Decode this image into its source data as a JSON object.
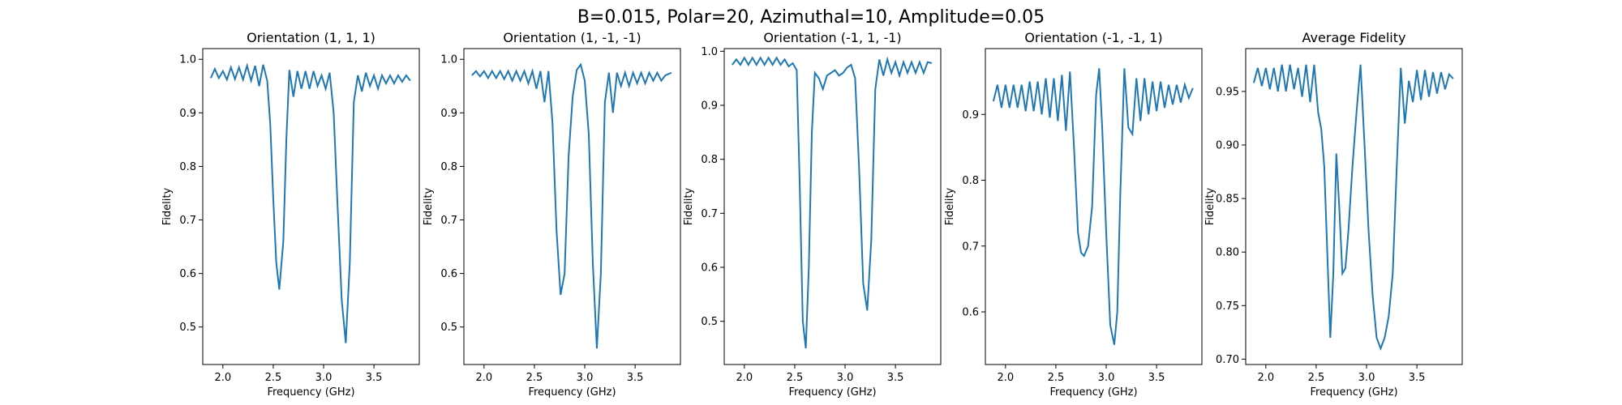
{
  "figure": {
    "suptitle": "B=0.015, Polar=20, Azimuthal=10, Amplitude=0.05"
  },
  "chart_data": [
    {
      "type": "line",
      "title": "Orientation (1, 1, 1)",
      "xlabel": "Frequency (GHz)",
      "ylabel": "Fidelity",
      "xlim": [
        1.8,
        3.95
      ],
      "ylim": [
        0.43,
        1.02
      ],
      "xticks": [
        2.0,
        2.5,
        3.0,
        3.5
      ],
      "xtick_labels": [
        "2.0",
        "2.5",
        "3.0",
        "3.5"
      ],
      "yticks": [
        0.5,
        0.6,
        0.7,
        0.8,
        0.9,
        1.0
      ],
      "ytick_labels": [
        "0.5",
        "0.6",
        "0.7",
        "0.8",
        "0.9",
        "1.0"
      ],
      "color": "#1f77b4",
      "series": [
        {
          "x": [
            1.88,
            1.92,
            1.96,
            2.0,
            2.04,
            2.08,
            2.12,
            2.16,
            2.2,
            2.24,
            2.28,
            2.32,
            2.36,
            2.4,
            2.44,
            2.47,
            2.5,
            2.53,
            2.56,
            2.6,
            2.63,
            2.66,
            2.7,
            2.74,
            2.78,
            2.82,
            2.86,
            2.9,
            2.94,
            2.98,
            3.02,
            3.06,
            3.1,
            3.14,
            3.18,
            3.22,
            3.26,
            3.3,
            3.34,
            3.38,
            3.42,
            3.46,
            3.5,
            3.54,
            3.58,
            3.62,
            3.66,
            3.7,
            3.74,
            3.78,
            3.82,
            3.86
          ],
          "y": [
            0.965,
            0.982,
            0.965,
            0.978,
            0.962,
            0.985,
            0.963,
            0.985,
            0.962,
            0.988,
            0.96,
            0.988,
            0.95,
            0.99,
            0.96,
            0.88,
            0.74,
            0.62,
            0.57,
            0.66,
            0.85,
            0.98,
            0.93,
            0.978,
            0.945,
            0.978,
            0.945,
            0.978,
            0.95,
            0.97,
            0.945,
            0.975,
            0.9,
            0.72,
            0.55,
            0.47,
            0.62,
            0.92,
            0.97,
            0.94,
            0.975,
            0.95,
            0.97,
            0.945,
            0.97,
            0.955,
            0.97,
            0.955,
            0.97,
            0.958,
            0.97,
            0.96
          ]
        }
      ]
    },
    {
      "type": "line",
      "title": "Orientation (1, -1, -1)",
      "xlabel": "Frequency (GHz)",
      "ylabel": "Fidelity",
      "xlim": [
        1.8,
        3.95
      ],
      "ylim": [
        0.43,
        1.02
      ],
      "xticks": [
        2.0,
        2.5,
        3.0,
        3.5
      ],
      "xtick_labels": [
        "2.0",
        "2.5",
        "3.0",
        "3.5"
      ],
      "yticks": [
        0.5,
        0.6,
        0.7,
        0.8,
        0.9,
        1.0
      ],
      "ytick_labels": [
        "0.5",
        "0.6",
        "0.7",
        "0.8",
        "0.9",
        "1.0"
      ],
      "color": "#1f77b4",
      "series": [
        {
          "x": [
            1.88,
            1.92,
            1.96,
            2.0,
            2.04,
            2.08,
            2.12,
            2.16,
            2.2,
            2.24,
            2.28,
            2.32,
            2.36,
            2.4,
            2.44,
            2.48,
            2.52,
            2.56,
            2.6,
            2.64,
            2.68,
            2.72,
            2.76,
            2.8,
            2.84,
            2.88,
            2.92,
            2.96,
            3.0,
            3.04,
            3.08,
            3.12,
            3.16,
            3.2,
            3.24,
            3.28,
            3.32,
            3.36,
            3.4,
            3.44,
            3.48,
            3.52,
            3.56,
            3.6,
            3.64,
            3.68,
            3.72,
            3.76,
            3.8,
            3.86
          ],
          "y": [
            0.97,
            0.978,
            0.968,
            0.978,
            0.965,
            0.978,
            0.965,
            0.978,
            0.963,
            0.978,
            0.96,
            0.978,
            0.96,
            0.978,
            0.955,
            0.978,
            0.945,
            0.978,
            0.92,
            0.978,
            0.88,
            0.68,
            0.56,
            0.6,
            0.82,
            0.93,
            0.98,
            0.99,
            0.96,
            0.86,
            0.62,
            0.46,
            0.6,
            0.92,
            0.975,
            0.9,
            0.975,
            0.95,
            0.975,
            0.95,
            0.975,
            0.955,
            0.975,
            0.955,
            0.975,
            0.96,
            0.975,
            0.96,
            0.97,
            0.975
          ]
        }
      ]
    },
    {
      "type": "line",
      "title": "Orientation (-1, 1, -1)",
      "xlabel": "Frequency (GHz)",
      "ylabel": "Fidelity",
      "xlim": [
        1.8,
        3.95
      ],
      "ylim": [
        0.42,
        1.005
      ],
      "xticks": [
        2.0,
        2.5,
        3.0,
        3.5
      ],
      "xtick_labels": [
        "2.0",
        "2.5",
        "3.0",
        "3.5"
      ],
      "yticks": [
        0.5,
        0.6,
        0.7,
        0.8,
        0.9,
        1.0
      ],
      "ytick_labels": [
        "0.5",
        "0.6",
        "0.7",
        "0.8",
        "0.9",
        "1.0"
      ],
      "color": "#1f77b4",
      "series": [
        {
          "x": [
            1.88,
            1.92,
            1.96,
            2.0,
            2.04,
            2.08,
            2.12,
            2.16,
            2.2,
            2.24,
            2.28,
            2.32,
            2.36,
            2.4,
            2.44,
            2.48,
            2.52,
            2.55,
            2.58,
            2.61,
            2.64,
            2.67,
            2.7,
            2.74,
            2.78,
            2.82,
            2.86,
            2.9,
            2.94,
            2.98,
            3.02,
            3.06,
            3.1,
            3.14,
            3.18,
            3.22,
            3.26,
            3.3,
            3.34,
            3.38,
            3.42,
            3.46,
            3.5,
            3.54,
            3.58,
            3.62,
            3.66,
            3.7,
            3.74,
            3.78,
            3.82,
            3.86
          ],
          "y": [
            0.975,
            0.985,
            0.975,
            0.988,
            0.975,
            0.988,
            0.975,
            0.988,
            0.975,
            0.988,
            0.975,
            0.988,
            0.975,
            0.985,
            0.972,
            0.978,
            0.965,
            0.75,
            0.5,
            0.45,
            0.6,
            0.85,
            0.96,
            0.95,
            0.93,
            0.955,
            0.96,
            0.965,
            0.955,
            0.96,
            0.97,
            0.975,
            0.95,
            0.78,
            0.57,
            0.52,
            0.65,
            0.93,
            0.985,
            0.955,
            0.985,
            0.96,
            0.98,
            0.955,
            0.98,
            0.96,
            0.98,
            0.96,
            0.98,
            0.96,
            0.98,
            0.978
          ]
        }
      ]
    },
    {
      "type": "line",
      "title": "Orientation (-1, -1, 1)",
      "xlabel": "Frequency (GHz)",
      "ylabel": "Fidelity",
      "xlim": [
        1.8,
        3.95
      ],
      "ylim": [
        0.52,
        1.0
      ],
      "xticks": [
        2.0,
        2.5,
        3.0,
        3.5
      ],
      "xtick_labels": [
        "2.0",
        "2.5",
        "3.0",
        "3.5"
      ],
      "yticks": [
        0.6,
        0.7,
        0.8,
        0.9
      ],
      "ytick_labels": [
        "0.6",
        "0.7",
        "0.8",
        "0.9"
      ],
      "color": "#1f77b4",
      "series": [
        {
          "x": [
            1.88,
            1.92,
            1.96,
            2.0,
            2.04,
            2.08,
            2.12,
            2.16,
            2.2,
            2.24,
            2.28,
            2.32,
            2.36,
            2.4,
            2.44,
            2.48,
            2.52,
            2.56,
            2.6,
            2.64,
            2.68,
            2.72,
            2.75,
            2.78,
            2.82,
            2.86,
            2.9,
            2.93,
            2.96,
            3.0,
            3.04,
            3.08,
            3.11,
            3.14,
            3.18,
            3.22,
            3.26,
            3.3,
            3.34,
            3.38,
            3.42,
            3.46,
            3.5,
            3.54,
            3.58,
            3.62,
            3.66,
            3.7,
            3.74,
            3.78,
            3.82,
            3.86
          ],
          "y": [
            0.92,
            0.945,
            0.91,
            0.945,
            0.91,
            0.945,
            0.91,
            0.945,
            0.905,
            0.95,
            0.905,
            0.95,
            0.9,
            0.955,
            0.895,
            0.955,
            0.89,
            0.96,
            0.875,
            0.965,
            0.85,
            0.72,
            0.69,
            0.685,
            0.7,
            0.76,
            0.93,
            0.97,
            0.88,
            0.72,
            0.58,
            0.55,
            0.6,
            0.78,
            0.97,
            0.88,
            0.87,
            0.955,
            0.89,
            0.955,
            0.9,
            0.95,
            0.905,
            0.95,
            0.91,
            0.945,
            0.915,
            0.945,
            0.918,
            0.945,
            0.925,
            0.94
          ]
        }
      ]
    },
    {
      "type": "line",
      "title": "Average Fidelity",
      "xlabel": "Frequency (GHz)",
      "ylabel": "Fidelity",
      "xlim": [
        1.8,
        3.95
      ],
      "ylim": [
        0.695,
        0.99
      ],
      "xticks": [
        2.0,
        2.5,
        3.0,
        3.5
      ],
      "xtick_labels": [
        "2.0",
        "2.5",
        "3.0",
        "3.5"
      ],
      "yticks": [
        0.7,
        0.75,
        0.8,
        0.85,
        0.9,
        0.95
      ],
      "ytick_labels": [
        "0.70",
        "0.75",
        "0.80",
        "0.85",
        "0.90",
        "0.95"
      ],
      "color": "#1f77b4",
      "series": [
        {
          "x": [
            1.88,
            1.92,
            1.96,
            2.0,
            2.04,
            2.08,
            2.12,
            2.16,
            2.2,
            2.24,
            2.28,
            2.32,
            2.36,
            2.4,
            2.44,
            2.48,
            2.52,
            2.55,
            2.58,
            2.61,
            2.64,
            2.67,
            2.7,
            2.73,
            2.76,
            2.79,
            2.82,
            2.86,
            2.9,
            2.94,
            2.98,
            3.02,
            3.06,
            3.1,
            3.14,
            3.18,
            3.22,
            3.26,
            3.3,
            3.34,
            3.38,
            3.42,
            3.46,
            3.5,
            3.54,
            3.58,
            3.62,
            3.66,
            3.7,
            3.74,
            3.78,
            3.82,
            3.86
          ],
          "y": [
            0.958,
            0.972,
            0.955,
            0.972,
            0.952,
            0.972,
            0.95,
            0.975,
            0.95,
            0.975,
            0.952,
            0.972,
            0.945,
            0.975,
            0.94,
            0.975,
            0.93,
            0.915,
            0.88,
            0.8,
            0.72,
            0.78,
            0.892,
            0.84,
            0.78,
            0.785,
            0.82,
            0.88,
            0.93,
            0.975,
            0.9,
            0.82,
            0.76,
            0.72,
            0.71,
            0.72,
            0.74,
            0.78,
            0.88,
            0.972,
            0.92,
            0.96,
            0.94,
            0.97,
            0.942,
            0.97,
            0.945,
            0.968,
            0.948,
            0.968,
            0.952,
            0.966,
            0.962
          ]
        }
      ]
    }
  ]
}
